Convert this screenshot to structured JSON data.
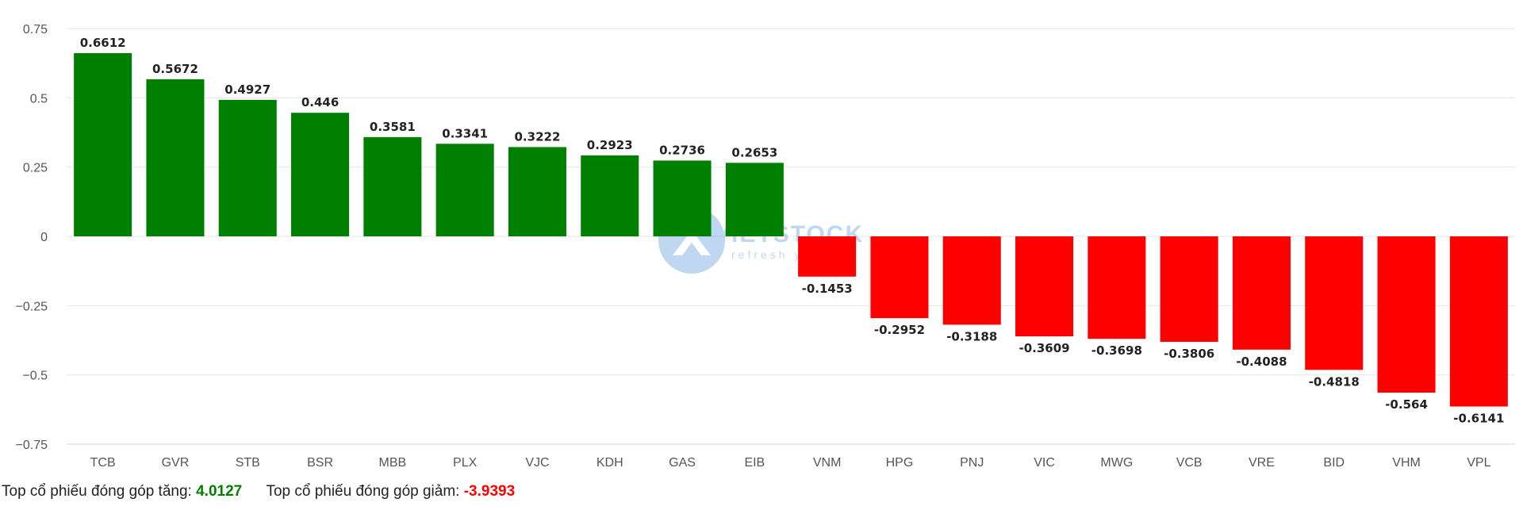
{
  "chart_data": {
    "type": "bar",
    "categories": [
      "TCB",
      "GVR",
      "STB",
      "BSR",
      "MBB",
      "PLX",
      "VJC",
      "KDH",
      "GAS",
      "EIB",
      "VNM",
      "HPG",
      "PNJ",
      "VIC",
      "MWG",
      "VCB",
      "VRE",
      "BID",
      "VHM",
      "VPL"
    ],
    "values": [
      0.6612,
      0.5672,
      0.4927,
      0.446,
      0.3581,
      0.3341,
      0.3222,
      0.2923,
      0.2736,
      0.2653,
      -0.1453,
      -0.2952,
      -0.3188,
      -0.3609,
      -0.3698,
      -0.3806,
      -0.4088,
      -0.4818,
      -0.564,
      -0.6141
    ],
    "labels": [
      "0.6612",
      "0.5672",
      "0.4927",
      "0.446",
      "0.3581",
      "0.3341",
      "0.3222",
      "0.2923",
      "0.2736",
      "0.2653",
      "-0.1453",
      "-0.2952",
      "-0.3188",
      "-0.3609",
      "-0.3698",
      "-0.3806",
      "-0.4088",
      "-0.4818",
      "-0.564",
      "-0.6141"
    ],
    "yticks": [
      0.75,
      0.5,
      0.25,
      0,
      -0.25,
      -0.5,
      -0.75
    ],
    "ytick_labels": [
      "0.75",
      "0.5",
      "0.25",
      "0",
      "−0.25",
      "−0.5",
      "−0.75"
    ],
    "ylim": [
      -0.75,
      0.75
    ],
    "grid": true,
    "title": "",
    "xlabel": "",
    "ylabel": "",
    "colors": {
      "positive": "#008000",
      "negative": "#ff0000"
    }
  },
  "watermark": {
    "text": "VIETSTOCK",
    "subtext": "refresh your..."
  },
  "summary": {
    "up_label": "Top cổ phiếu đóng góp tăng:",
    "up_value": "4.0127",
    "up_color": "#008000",
    "down_label": "Top cổ phiếu đóng góp giảm:",
    "down_value": "-3.9393",
    "down_color": "#ff0000"
  }
}
